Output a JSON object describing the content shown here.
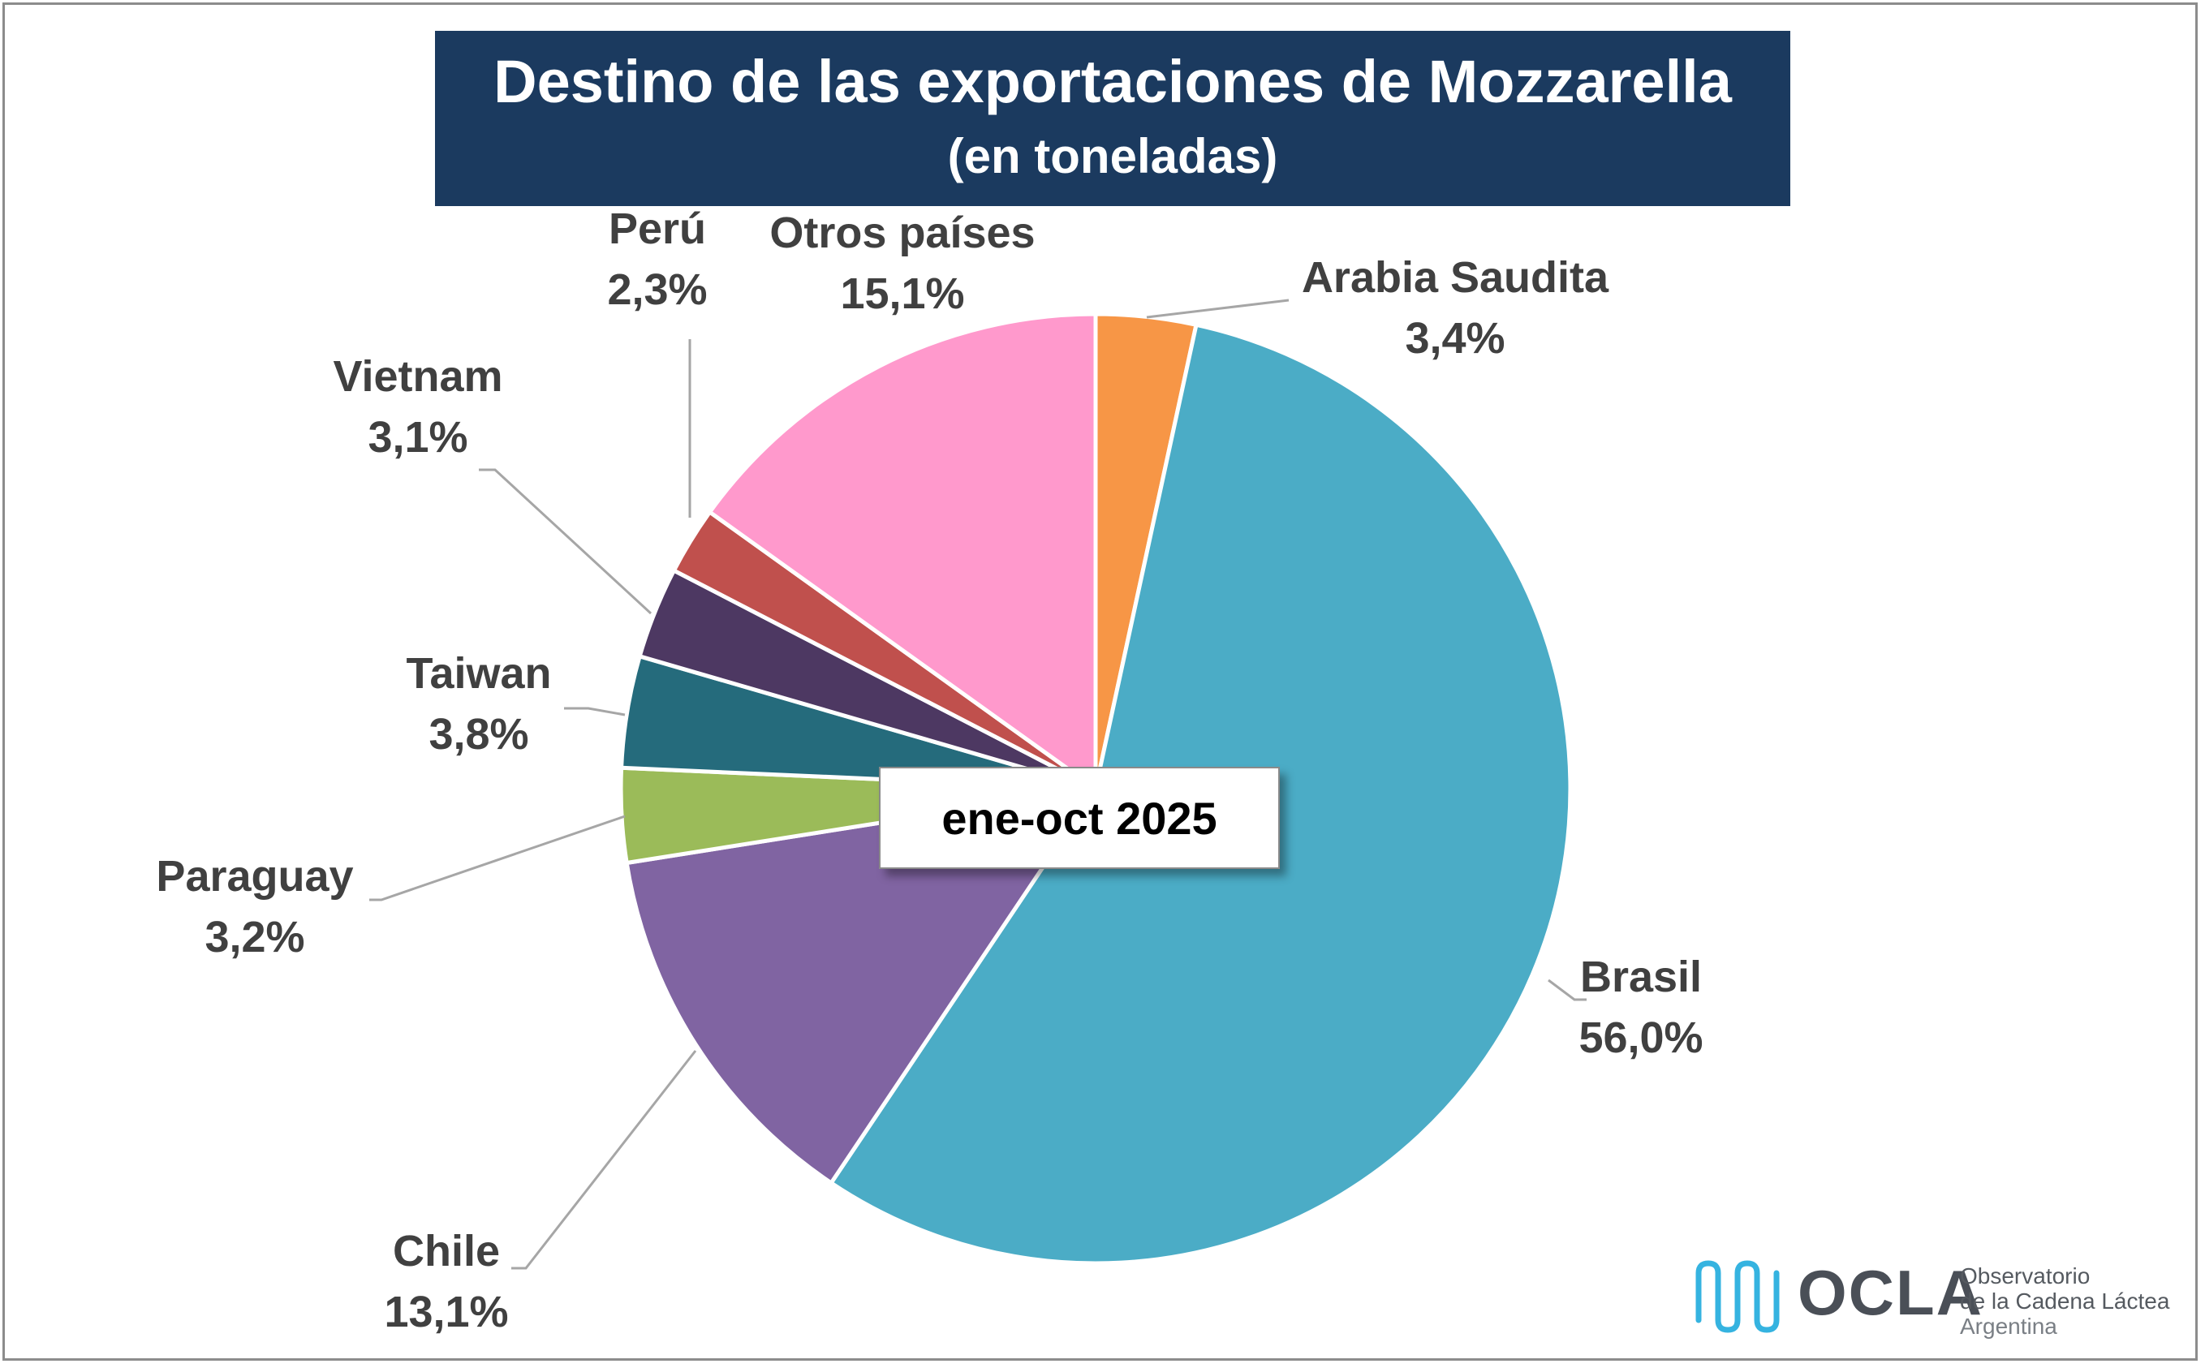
{
  "chart_data": {
    "type": "pie",
    "title": "Destino de las exportaciones de Mozzarella",
    "subtitle": "(en toneladas)",
    "period": "ene-oct 2025",
    "slices": [
      {
        "name": "Arabia Saudita",
        "label": "3,4%",
        "value": 3.4,
        "color": "#f79646"
      },
      {
        "name": "Brasil",
        "label": "56,0%",
        "value": 56.0,
        "color": "#4bacc6"
      },
      {
        "name": "Chile",
        "label": "13,1%",
        "value": 13.1,
        "color": "#8064a2"
      },
      {
        "name": "Paraguay",
        "label": "3,2%",
        "value": 3.2,
        "color": "#9bbb59"
      },
      {
        "name": "Taiwan",
        "label": "3,8%",
        "value": 3.8,
        "color": "#256b7c"
      },
      {
        "name": "Vietnam",
        "label": "3,1%",
        "value": 3.1,
        "color": "#4d3862"
      },
      {
        "name": "Perú",
        "label": "2,3%",
        "value": 2.3,
        "color": "#c0504d"
      },
      {
        "name": "Otros países",
        "label": "15,1%",
        "value": 15.1,
        "color": "#ff99cc"
      }
    ]
  },
  "logo": {
    "name": "OCLA",
    "line1": "Observatorio",
    "line2": "de la Cadena Láctea",
    "line3": "Argentina",
    "accent_color": "#35b3e0"
  }
}
